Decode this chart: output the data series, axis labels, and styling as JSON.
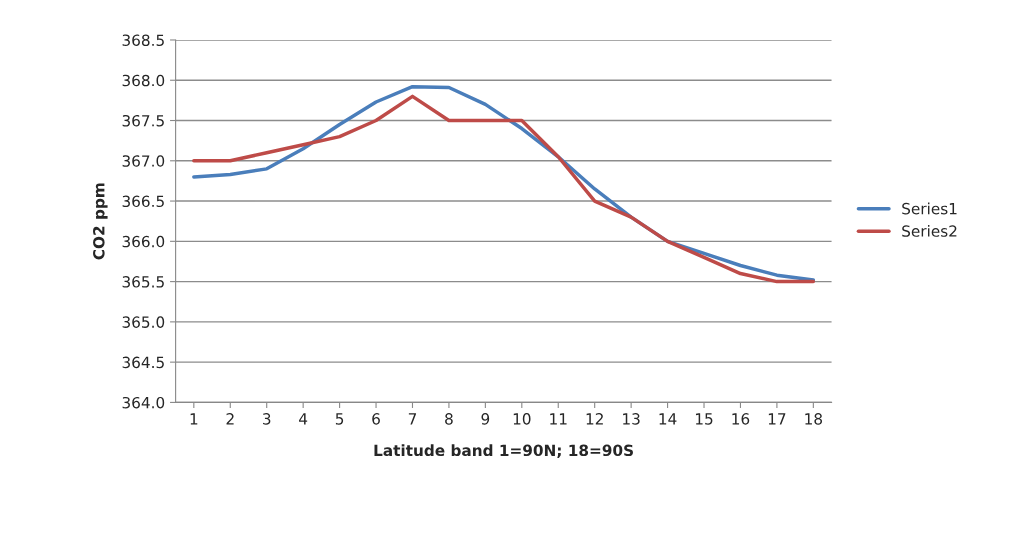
{
  "chart_data": {
    "type": "line",
    "xlabel": "Latitude band 1=90N; 18=90S",
    "ylabel": "CO2 ppm",
    "categories": [
      "1",
      "2",
      "3",
      "4",
      "5",
      "6",
      "7",
      "8",
      "9",
      "10",
      "11",
      "12",
      "13",
      "14",
      "15",
      "16",
      "17",
      "18"
    ],
    "series": [
      {
        "name": "Series1",
        "color": "#4a7ebb",
        "values": [
          366.8,
          366.83,
          366.9,
          367.15,
          367.45,
          367.73,
          367.92,
          367.91,
          367.7,
          367.4,
          367.05,
          366.65,
          366.3,
          366.0,
          365.85,
          365.7,
          365.58,
          365.52
        ]
      },
      {
        "name": "Series2",
        "color": "#be4b48",
        "values": [
          367.0,
          367.0,
          367.1,
          367.2,
          367.3,
          367.5,
          367.8,
          367.5,
          367.5,
          367.5,
          367.05,
          366.5,
          366.3,
          366.0,
          365.8,
          365.6,
          365.5,
          365.5
        ]
      }
    ],
    "ylim": [
      364.0,
      368.5
    ],
    "yticks": [
      {
        "value": 364.0,
        "label": "364.0"
      },
      {
        "value": 364.5,
        "label": "364.5"
      },
      {
        "value": 365.0,
        "label": "365.0"
      },
      {
        "value": 365.5,
        "label": "365.5"
      },
      {
        "value": 366.0,
        "label": "366.0"
      },
      {
        "value": 366.5,
        "label": "366.5"
      },
      {
        "value": 367.0,
        "label": "367.0"
      },
      {
        "value": 367.5,
        "label": "367.5"
      },
      {
        "value": 368.0,
        "label": "368.0"
      },
      {
        "value": 368.5,
        "label": "368.5"
      }
    ],
    "grid": "y",
    "legend": "right",
    "marker": "none",
    "line_style": "solid"
  }
}
